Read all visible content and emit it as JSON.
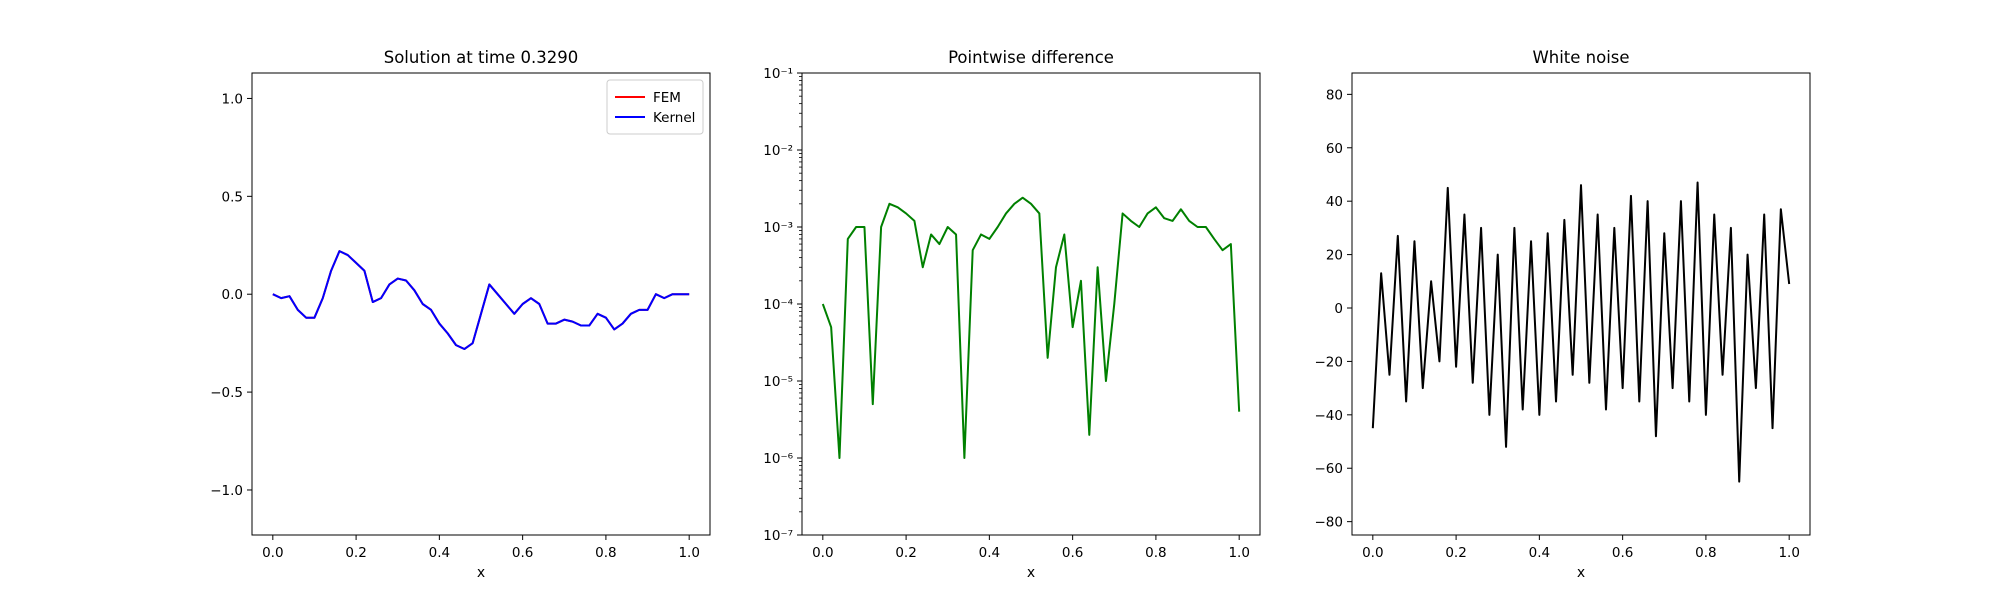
{
  "chart_data": [
    {
      "type": "line",
      "title": "Solution at time 0.3290",
      "xlabel": "x",
      "ylabel": "",
      "xlim": [
        -0.05,
        1.05
      ],
      "ylim": [
        -1.23,
        1.13
      ],
      "xticks": [
        0.0,
        0.2,
        0.4,
        0.6,
        0.8,
        1.0
      ],
      "xtick_labels": [
        "0.0",
        "0.2",
        "0.4",
        "0.6",
        "0.8",
        "1.0"
      ],
      "yticks": [
        -1.0,
        -0.5,
        0.0,
        0.5,
        1.0
      ],
      "ytick_labels": [
        "−1.0",
        "−0.5",
        "0.0",
        "0.5",
        "1.0"
      ],
      "legend": "top-right",
      "x": [
        0.0,
        0.02,
        0.04,
        0.06,
        0.08,
        0.1,
        0.12,
        0.14,
        0.16,
        0.18,
        0.2,
        0.22,
        0.24,
        0.26,
        0.28,
        0.3,
        0.32,
        0.34,
        0.36,
        0.38,
        0.4,
        0.42,
        0.44,
        0.46,
        0.48,
        0.5,
        0.52,
        0.54,
        0.56,
        0.58,
        0.6,
        0.62,
        0.64,
        0.66,
        0.68,
        0.7,
        0.72,
        0.74,
        0.76,
        0.78,
        0.8,
        0.82,
        0.84,
        0.86,
        0.88,
        0.9,
        0.92,
        0.94,
        0.96,
        0.98,
        1.0
      ],
      "series": [
        {
          "name": "FEM",
          "color": "#ff0000",
          "values": [
            0.0,
            -0.02,
            -0.01,
            -0.08,
            -0.12,
            -0.12,
            -0.02,
            0.12,
            0.22,
            0.2,
            0.16,
            0.12,
            -0.04,
            -0.02,
            0.05,
            0.08,
            0.07,
            0.02,
            -0.05,
            -0.08,
            -0.15,
            -0.2,
            -0.26,
            -0.28,
            -0.25,
            -0.1,
            0.05,
            0.0,
            -0.05,
            -0.1,
            -0.05,
            -0.02,
            -0.05,
            -0.15,
            -0.15,
            -0.13,
            -0.14,
            -0.16,
            -0.16,
            -0.1,
            -0.12,
            -0.18,
            -0.15,
            -0.1,
            -0.08,
            -0.08,
            0.0,
            -0.02,
            0.0,
            0.0,
            0.0
          ]
        },
        {
          "name": "Kernel",
          "color": "#0000ff",
          "values": [
            0.0,
            -0.02,
            -0.01,
            -0.08,
            -0.12,
            -0.12,
            -0.02,
            0.12,
            0.22,
            0.2,
            0.16,
            0.12,
            -0.04,
            -0.02,
            0.05,
            0.08,
            0.07,
            0.02,
            -0.05,
            -0.08,
            -0.15,
            -0.2,
            -0.26,
            -0.28,
            -0.25,
            -0.1,
            0.05,
            0.0,
            -0.05,
            -0.1,
            -0.05,
            -0.02,
            -0.05,
            -0.15,
            -0.15,
            -0.13,
            -0.14,
            -0.16,
            -0.16,
            -0.1,
            -0.12,
            -0.18,
            -0.15,
            -0.1,
            -0.08,
            -0.08,
            0.0,
            -0.02,
            0.0,
            0.0,
            0.0
          ]
        }
      ]
    },
    {
      "type": "line",
      "title": "Pointwise difference",
      "xlabel": "x",
      "ylabel": "",
      "yscale": "log",
      "xlim": [
        -0.05,
        1.05
      ],
      "ylim": [
        1e-07,
        0.1
      ],
      "xticks": [
        0.0,
        0.2,
        0.4,
        0.6,
        0.8,
        1.0
      ],
      "xtick_labels": [
        "0.0",
        "0.2",
        "0.4",
        "0.6",
        "0.8",
        "1.0"
      ],
      "yticks": [
        1e-07,
        1e-06,
        1e-05,
        0.0001,
        0.001,
        0.01,
        0.1
      ],
      "ytick_labels": [
        "10⁻⁷",
        "10⁻⁶",
        "10⁻⁵",
        "10⁻⁴",
        "10⁻³",
        "10⁻²",
        "10⁻¹"
      ],
      "x": [
        0.0,
        0.02,
        0.04,
        0.06,
        0.08,
        0.1,
        0.12,
        0.14,
        0.16,
        0.18,
        0.2,
        0.22,
        0.24,
        0.26,
        0.28,
        0.3,
        0.32,
        0.34,
        0.36,
        0.38,
        0.4,
        0.42,
        0.44,
        0.46,
        0.48,
        0.5,
        0.52,
        0.54,
        0.56,
        0.58,
        0.6,
        0.62,
        0.64,
        0.66,
        0.68,
        0.7,
        0.72,
        0.74,
        0.76,
        0.78,
        0.8,
        0.82,
        0.84,
        0.86,
        0.88,
        0.9,
        0.92,
        0.94,
        0.96,
        0.98,
        1.0
      ],
      "series": [
        {
          "name": "",
          "color": "#008000",
          "values": [
            0.0001,
            5e-05,
            1e-06,
            0.0007,
            0.001,
            0.001,
            5e-06,
            0.001,
            0.002,
            0.0018,
            0.0015,
            0.0012,
            0.0003,
            0.0008,
            0.0006,
            0.001,
            0.0008,
            1e-06,
            0.0005,
            0.0008,
            0.0007,
            0.001,
            0.0015,
            0.002,
            0.0024,
            0.002,
            0.0015,
            2e-05,
            0.0003,
            0.0008,
            5e-05,
            0.0002,
            2e-06,
            0.0003,
            1e-05,
            0.0001,
            0.0015,
            0.0012,
            0.001,
            0.0015,
            0.0018,
            0.0013,
            0.0012,
            0.0017,
            0.0012,
            0.001,
            0.001,
            0.0007,
            0.0005,
            0.0006,
            4e-06
          ]
        }
      ]
    },
    {
      "type": "line",
      "title": "White noise",
      "xlabel": "x",
      "ylabel": "",
      "xlim": [
        -0.05,
        1.05
      ],
      "ylim": [
        -85,
        88
      ],
      "xticks": [
        0.0,
        0.2,
        0.4,
        0.6,
        0.8,
        1.0
      ],
      "xtick_labels": [
        "0.0",
        "0.2",
        "0.4",
        "0.6",
        "0.8",
        "1.0"
      ],
      "yticks": [
        -80,
        -60,
        -40,
        -20,
        0,
        20,
        40,
        60,
        80
      ],
      "ytick_labels": [
        "−80",
        "−60",
        "−40",
        "−20",
        "0",
        "20",
        "40",
        "60",
        "80"
      ],
      "x": [
        0.0,
        0.02,
        0.04,
        0.06,
        0.08,
        0.1,
        0.12,
        0.14,
        0.16,
        0.18,
        0.2,
        0.22,
        0.24,
        0.26,
        0.28,
        0.3,
        0.32,
        0.34,
        0.36,
        0.38,
        0.4,
        0.42,
        0.44,
        0.46,
        0.48,
        0.5,
        0.52,
        0.54,
        0.56,
        0.58,
        0.6,
        0.62,
        0.64,
        0.66,
        0.68,
        0.7,
        0.72,
        0.74,
        0.76,
        0.78,
        0.8,
        0.82,
        0.84,
        0.86,
        0.88,
        0.9,
        0.92,
        0.94,
        0.96,
        0.98,
        1.0
      ],
      "series": [
        {
          "name": "",
          "color": "#000000",
          "values": [
            -45,
            13,
            -25,
            27,
            -35,
            25,
            -30,
            10,
            -20,
            45,
            -22,
            35,
            -28,
            30,
            -40,
            20,
            -52,
            30,
            -38,
            25,
            -40,
            28,
            -35,
            33,
            -25,
            46,
            -28,
            35,
            -38,
            30,
            -30,
            42,
            -35,
            40,
            -48,
            28,
            -30,
            40,
            -35,
            47,
            -40,
            35,
            -25,
            30,
            -65,
            20,
            -30,
            35,
            -45,
            37,
            9
          ]
        }
      ]
    }
  ]
}
